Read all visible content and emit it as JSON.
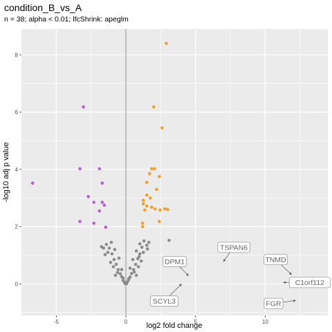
{
  "chart_data": {
    "type": "scatter",
    "title": "condition_B_vs_A",
    "subtitle": "n = 38; alpha < 0.01; lfcShrink: apeglm",
    "xlabel": "log2 fold change",
    "ylabel": "-log10 adj p value",
    "xlim": [
      -7.5,
      14.5
    ],
    "ylim": [
      -1.1,
      8.9
    ],
    "x_ticks": [
      -5,
      0,
      5,
      10
    ],
    "y_ticks": [
      0,
      2,
      4,
      6,
      8
    ],
    "grid": true,
    "zero_line": true,
    "colors": {
      "down": "#b65fd6",
      "up": "#f2a02a",
      "ns": "#8c8c8c",
      "panel": "#ebebeb",
      "grid": "#ffffff",
      "label_border": "#999999",
      "label_text": "#666666"
    },
    "series": [
      {
        "points": [
          [
            -3.05,
            6.18
          ],
          [
            -3.3,
            4.02
          ],
          [
            -1.9,
            4.02
          ],
          [
            -6.7,
            3.52
          ],
          [
            -1.7,
            3.52
          ],
          [
            -2.7,
            3.05
          ],
          [
            -2.3,
            2.85
          ],
          [
            -1.7,
            2.85
          ],
          [
            -1.55,
            2.75
          ],
          [
            -1.9,
            2.55
          ],
          [
            -3.3,
            2.18
          ],
          [
            -2.3,
            2.12
          ],
          [
            -1.45,
            1.98
          ]
        ]
      },
      {
        "points": [
          [
            2.9,
            8.4
          ],
          [
            2.0,
            6.18
          ],
          [
            2.6,
            5.45
          ],
          [
            1.85,
            4.02
          ],
          [
            2.05,
            4.02
          ],
          [
            1.7,
            3.85
          ],
          [
            2.4,
            3.75
          ],
          [
            1.5,
            3.55
          ],
          [
            2.2,
            3.3
          ],
          [
            1.5,
            3.1
          ],
          [
            1.75,
            3.0
          ],
          [
            1.25,
            2.92
          ],
          [
            1.25,
            2.8
          ],
          [
            1.5,
            2.72
          ],
          [
            1.85,
            2.68
          ],
          [
            2.1,
            2.62
          ],
          [
            2.8,
            2.62
          ],
          [
            3.0,
            2.6
          ],
          [
            2.45,
            2.58
          ],
          [
            1.35,
            2.58
          ],
          [
            1.2,
            2.12
          ],
          [
            1.2,
            2.0
          ],
          [
            2.4,
            2.18
          ]
        ]
      },
      {
        "points": [
          [
            -0.4,
            0.35
          ],
          [
            -0.3,
            0.25
          ],
          [
            -0.2,
            0.12
          ],
          [
            -0.1,
            0.05
          ],
          [
            0.0,
            0.02
          ],
          [
            0.1,
            0.06
          ],
          [
            0.2,
            0.14
          ],
          [
            0.3,
            0.24
          ],
          [
            0.4,
            0.36
          ],
          [
            -0.55,
            0.5
          ],
          [
            -0.7,
            0.68
          ],
          [
            -0.85,
            0.85
          ],
          [
            -1.0,
            1.05
          ],
          [
            -1.2,
            1.25
          ],
          [
            -0.6,
            0.4
          ],
          [
            -0.9,
            0.6
          ],
          [
            -1.1,
            0.75
          ],
          [
            -0.75,
            0.3
          ],
          [
            0.55,
            0.5
          ],
          [
            0.7,
            0.68
          ],
          [
            0.85,
            0.88
          ],
          [
            1.0,
            1.05
          ],
          [
            1.15,
            1.28
          ],
          [
            0.6,
            0.42
          ],
          [
            0.9,
            0.6
          ],
          [
            1.1,
            0.8
          ],
          [
            0.75,
            0.3
          ],
          [
            -1.4,
            1.38
          ],
          [
            -1.05,
            1.45
          ],
          [
            -0.8,
            1.2
          ],
          [
            -0.5,
            0.9
          ],
          [
            -1.3,
            1.1
          ],
          [
            -1.6,
            1.25
          ],
          [
            1.3,
            1.5
          ],
          [
            1.0,
            1.4
          ],
          [
            0.75,
            1.15
          ],
          [
            0.5,
            0.85
          ],
          [
            1.25,
            1.1
          ],
          [
            1.55,
            1.22
          ],
          [
            -0.3,
            0.5
          ],
          [
            0.3,
            0.55
          ],
          [
            -1.75,
            1.3
          ],
          [
            1.65,
            1.45
          ],
          [
            -0.2,
            0.2
          ],
          [
            0.2,
            0.18
          ],
          [
            -0.05,
            0.01
          ],
          [
            0.05,
            0.01
          ],
          [
            1.5,
            1.35
          ],
          [
            -1.5,
            1.02
          ],
          [
            0.95,
            0.95
          ],
          [
            3.1,
            1.52
          ]
        ]
      }
    ],
    "labels": [
      {
        "text": "DPM1",
        "x": 3.5,
        "y": 0.78,
        "px": 4.5,
        "py": 0.28
      },
      {
        "text": "TSPAN6",
        "x": 7.75,
        "y": 1.28,
        "px": 7.0,
        "py": 0.78
      },
      {
        "text": "TNMD",
        "x": 10.75,
        "y": 0.85,
        "px": 11.9,
        "py": 0.32
      },
      {
        "text": "C1orf112",
        "x": 13.2,
        "y": 0.05,
        "px": 11.3,
        "py": 0.05
      },
      {
        "text": "SCYL3",
        "x": 2.75,
        "y": -0.6,
        "px": 4.0,
        "py": 0.0
      },
      {
        "text": "FGR",
        "x": 10.6,
        "y": -0.68,
        "px": 12.2,
        "py": -0.58
      }
    ]
  }
}
